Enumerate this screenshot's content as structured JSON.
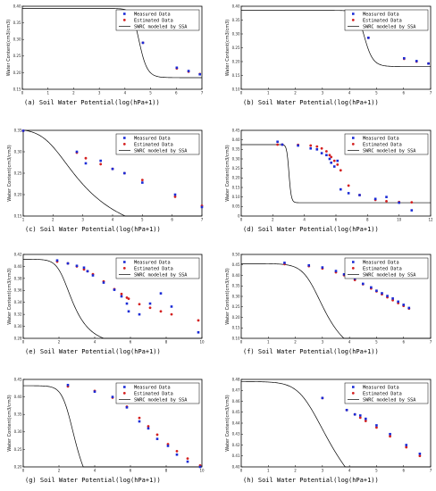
{
  "colors": {
    "measured": "#1a2bd6",
    "estimated": "#d42020",
    "curve": "#000000",
    "axis": "#000000"
  },
  "chart_data": [
    {
      "panel": "(a)",
      "type": "scatter",
      "caption": "(a)  Soil Water Potential(log(hPa+1))",
      "ylabel": "Water Content(cm3/cm3)",
      "xlim": [
        0,
        7
      ],
      "ylim": [
        0.15,
        0.4
      ],
      "xticks": [
        "0",
        "1",
        "2",
        "3",
        "4",
        "5",
        "6",
        "7"
      ],
      "yticks": [
        "0.15",
        "0.20",
        "0.25",
        "0.30",
        "0.35",
        "0.40"
      ],
      "legend": [
        "Measured Data",
        "Estimated Data",
        "SWRC modeled by SSA"
      ],
      "curve": {
        "theta_r": 0.185,
        "theta_s": 0.393,
        "alpha": 3.16e-05,
        "n": 3.3
      },
      "measured": [
        [
          4.7,
          0.29
        ],
        [
          6.02,
          0.215
        ],
        [
          6.48,
          0.205
        ],
        [
          6.92,
          0.195
        ]
      ],
      "estimated": [
        [
          4.7,
          0.29
        ],
        [
          6.02,
          0.213
        ],
        [
          6.48,
          0.203
        ],
        [
          6.92,
          0.196
        ]
      ]
    },
    {
      "panel": "(b)",
      "type": "scatter",
      "caption": "(b)  Soil Water Potential(log(hPa+1))",
      "ylabel": "Water Content(cm3/cm3)",
      "xlim": [
        0,
        7
      ],
      "ylim": [
        0.1,
        0.4
      ],
      "xticks": [
        "0",
        "1",
        "2",
        "3",
        "4",
        "5",
        "6",
        "7"
      ],
      "yticks": [
        "0.10",
        "0.15",
        "0.20",
        "0.25",
        "0.30",
        "0.35",
        "0.40"
      ],
      "legend": [
        "Measured Data",
        "Estimated Data",
        "SWRC modeled by SSA"
      ],
      "curve": {
        "theta_r": 0.182,
        "theta_s": 0.385,
        "alpha": 3.16e-05,
        "n": 3.3
      },
      "measured": [
        [
          4.7,
          0.286
        ],
        [
          6.02,
          0.212
        ],
        [
          6.48,
          0.202
        ],
        [
          6.92,
          0.193
        ]
      ],
      "estimated": [
        [
          4.7,
          0.286
        ],
        [
          6.02,
          0.21
        ],
        [
          6.48,
          0.2
        ],
        [
          6.92,
          0.193
        ]
      ]
    },
    {
      "panel": "(c)",
      "type": "scatter",
      "caption": "(c)  Soil Water Potential(log(hPa+1))",
      "ylabel": "Water Content(cm3/cm3)",
      "xlim": [
        1,
        7
      ],
      "ylim": [
        0.15,
        0.35
      ],
      "xticks": [
        "1",
        "2",
        "3",
        "4",
        "5",
        "6",
        "7"
      ],
      "yticks": [
        "0.15",
        "0.20",
        "0.25",
        "0.30",
        "0.35"
      ],
      "legend": [
        "Measured Data",
        "Estimated Data",
        "SWRC modeled by SSA"
      ],
      "curve": {
        "theta_r": 0.1,
        "theta_s": 0.354,
        "alpha": 0.0125,
        "n": 1.28
      },
      "measured": [
        [
          1.0,
          0.349
        ],
        [
          2.8,
          0.3
        ],
        [
          3.1,
          0.273
        ],
        [
          3.6,
          0.279
        ],
        [
          4.0,
          0.26
        ],
        [
          4.4,
          0.25
        ],
        [
          5.0,
          0.228
        ],
        [
          6.1,
          0.2
        ],
        [
          7.0,
          0.171
        ]
      ],
      "estimated": [
        [
          1.0,
          0.349
        ],
        [
          2.8,
          0.298
        ],
        [
          3.1,
          0.285
        ],
        [
          3.6,
          0.271
        ],
        [
          4.0,
          0.26
        ],
        [
          4.4,
          0.25
        ],
        [
          5.0,
          0.234
        ],
        [
          6.1,
          0.195
        ],
        [
          7.0,
          0.174
        ]
      ]
    },
    {
      "panel": "(d)",
      "type": "scatter",
      "caption": "(d)  Soil Water Potential(log(hPa+1))",
      "ylabel": "Water Content(cm3/cm3)",
      "xlim": [
        0,
        12
      ],
      "ylim": [
        0.0,
        0.45
      ],
      "xticks": [
        "0",
        "2",
        "4",
        "6",
        "8",
        "10",
        "12"
      ],
      "yticks": [
        "0",
        "0.05",
        "0.10",
        "0.15",
        "0.20",
        "0.25",
        "0.30",
        "0.35",
        "0.40",
        "0.45"
      ],
      "legend": [
        "Measured Data",
        "Estimated Data",
        "SWRC modeled by SSA"
      ],
      "curve": {
        "theta_r": 0.07,
        "theta_s": 0.375,
        "alpha": 0.00098,
        "n": 6.4
      },
      "measured": [
        [
          2.3,
          0.39
        ],
        [
          2.6,
          0.375
        ],
        [
          3.6,
          0.37
        ],
        [
          4.4,
          0.355
        ],
        [
          4.8,
          0.35
        ],
        [
          5.1,
          0.33
        ],
        [
          5.4,
          0.32
        ],
        [
          5.6,
          0.3
        ],
        [
          5.7,
          0.28
        ],
        [
          5.9,
          0.26
        ],
        [
          6.1,
          0.29
        ],
        [
          6.3,
          0.14
        ],
        [
          6.8,
          0.12
        ],
        [
          7.5,
          0.11
        ],
        [
          8.5,
          0.09
        ],
        [
          9.2,
          0.1
        ],
        [
          10.0,
          0.07
        ],
        [
          10.8,
          0.03
        ]
      ],
      "estimated": [
        [
          2.3,
          0.375
        ],
        [
          2.6,
          0.375
        ],
        [
          3.6,
          0.374
        ],
        [
          4.4,
          0.37
        ],
        [
          4.8,
          0.365
        ],
        [
          5.1,
          0.355
        ],
        [
          5.4,
          0.34
        ],
        [
          5.6,
          0.32
        ],
        [
          5.7,
          0.31
        ],
        [
          5.9,
          0.29
        ],
        [
          6.1,
          0.27
        ],
        [
          6.3,
          0.24
        ],
        [
          6.8,
          0.16
        ],
        [
          7.5,
          0.11
        ],
        [
          8.5,
          0.085
        ],
        [
          9.2,
          0.078
        ],
        [
          10.0,
          0.074
        ],
        [
          10.8,
          0.072
        ]
      ]
    },
    {
      "panel": "(e)",
      "type": "scatter",
      "caption": "(e)  Soil Water Potential(log(hPa+1))",
      "ylabel": "Water Content(cm3/cm3)",
      "xlim": [
        0,
        10
      ],
      "ylim": [
        0.28,
        0.42
      ],
      "xticks": [
        "0",
        "2",
        "4",
        "6",
        "8",
        "10"
      ],
      "yticks": [
        "0.28",
        "0.30",
        "0.32",
        "0.34",
        "0.36",
        "0.38",
        "0.40",
        "0.42"
      ],
      "legend": [
        "Measured Data",
        "Estimated Data",
        "SWRC modeled by SSA"
      ],
      "curve": {
        "theta_r": 0.27,
        "theta_s": 0.412,
        "alpha": 0.00631,
        "n": 1.5
      },
      "measured": [
        [
          1.9,
          0.41
        ],
        [
          2.5,
          0.405
        ],
        [
          3.0,
          0.401
        ],
        [
          3.4,
          0.398
        ],
        [
          3.6,
          0.392
        ],
        [
          3.9,
          0.385
        ],
        [
          4.5,
          0.373
        ],
        [
          5.1,
          0.361
        ],
        [
          5.5,
          0.35
        ],
        [
          5.8,
          0.338
        ],
        [
          5.9,
          0.325
        ],
        [
          6.5,
          0.32
        ],
        [
          7.1,
          0.338
        ],
        [
          7.7,
          0.355
        ],
        [
          8.3,
          0.333
        ],
        [
          9.8,
          0.29
        ]
      ],
      "estimated": [
        [
          1.9,
          0.408
        ],
        [
          2.5,
          0.405
        ],
        [
          3.0,
          0.4
        ],
        [
          3.4,
          0.395
        ],
        [
          3.6,
          0.392
        ],
        [
          3.9,
          0.387
        ],
        [
          4.5,
          0.375
        ],
        [
          5.1,
          0.362
        ],
        [
          5.5,
          0.354
        ],
        [
          5.8,
          0.348
        ],
        [
          5.9,
          0.346
        ],
        [
          6.5,
          0.337
        ],
        [
          7.1,
          0.331
        ],
        [
          7.7,
          0.325
        ],
        [
          8.3,
          0.32
        ],
        [
          9.8,
          0.31
        ]
      ]
    },
    {
      "panel": "(f)",
      "type": "scatter",
      "caption": "(f)  Soil Water Potential(log(hPa+1))",
      "ylabel": "Water Content(cm3/cm3)",
      "xlim": [
        0,
        7
      ],
      "ylim": [
        0.1,
        0.5
      ],
      "xticks": [
        "0",
        "1",
        "2",
        "3",
        "4",
        "5",
        "6",
        "7"
      ],
      "yticks": [
        "0.10",
        "0.15",
        "0.20",
        "0.25",
        "0.30",
        "0.35",
        "0.40",
        "0.45",
        "0.50"
      ],
      "legend": [
        "Measured Data",
        "Estimated Data",
        "SWRC modeled by SSA"
      ],
      "curve": {
        "theta_r": 0.0,
        "theta_s": 0.456,
        "alpha": 0.00251,
        "n": 1.55
      },
      "measured": [
        [
          1.6,
          0.46
        ],
        [
          2.5,
          0.448
        ],
        [
          3.0,
          0.438
        ],
        [
          3.5,
          0.421
        ],
        [
          3.8,
          0.405
        ],
        [
          4.2,
          0.385
        ],
        [
          4.5,
          0.36
        ],
        [
          4.8,
          0.343
        ],
        [
          5.0,
          0.327
        ],
        [
          5.2,
          0.315
        ],
        [
          5.4,
          0.302
        ],
        [
          5.6,
          0.29
        ],
        [
          5.8,
          0.275
        ],
        [
          6.0,
          0.26
        ],
        [
          6.2,
          0.245
        ]
      ],
      "estimated": [
        [
          1.6,
          0.454
        ],
        [
          2.5,
          0.444
        ],
        [
          3.0,
          0.433
        ],
        [
          3.5,
          0.415
        ],
        [
          3.8,
          0.401
        ],
        [
          4.2,
          0.378
        ],
        [
          4.5,
          0.358
        ],
        [
          4.8,
          0.338
        ],
        [
          5.0,
          0.324
        ],
        [
          5.2,
          0.31
        ],
        [
          5.4,
          0.296
        ],
        [
          5.6,
          0.282
        ],
        [
          5.8,
          0.268
        ],
        [
          6.0,
          0.255
        ],
        [
          6.2,
          0.242
        ]
      ]
    },
    {
      "panel": "(g)",
      "type": "scatter",
      "caption": "(g)  Soil Water Potential(log(hPa+1))",
      "ylabel": "Water Content(cm3/cm3)",
      "xlim": [
        0,
        10
      ],
      "ylim": [
        0.2,
        0.45
      ],
      "xticks": [
        "0",
        "2",
        "4",
        "6",
        "8",
        "10"
      ],
      "yticks": [
        "0.20",
        "0.25",
        "0.30",
        "0.35",
        "0.40",
        "0.45"
      ],
      "legend": [
        "Measured Data",
        "Estimated Data",
        "SWRC modeled by SSA"
      ],
      "curve": {
        "theta_r": 0.1,
        "theta_s": 0.432,
        "alpha": 0.00316,
        "n": 1.6
      },
      "measured": [
        [
          2.5,
          0.434
        ],
        [
          4.0,
          0.415
        ],
        [
          5.0,
          0.4
        ],
        [
          5.8,
          0.37
        ],
        [
          6.5,
          0.33
        ],
        [
          7.0,
          0.31
        ],
        [
          7.5,
          0.28
        ],
        [
          8.1,
          0.26
        ],
        [
          8.6,
          0.235
        ],
        [
          9.2,
          0.215
        ],
        [
          9.9,
          0.2
        ]
      ],
      "estimated": [
        [
          2.5,
          0.43
        ],
        [
          4.0,
          0.417
        ],
        [
          5.0,
          0.398
        ],
        [
          5.8,
          0.372
        ],
        [
          6.5,
          0.34
        ],
        [
          7.0,
          0.316
        ],
        [
          7.5,
          0.292
        ],
        [
          8.1,
          0.265
        ],
        [
          8.6,
          0.245
        ],
        [
          9.2,
          0.224
        ],
        [
          9.9,
          0.204
        ]
      ]
    },
    {
      "panel": "(h)",
      "type": "scatter",
      "caption": "(h)  Soil Water Potential(log(hPa+1))",
      "ylabel": "Water Content(cm3/cm3)",
      "xlim": [
        0,
        7
      ],
      "ylim": [
        0.4,
        0.48
      ],
      "xticks": [
        "0",
        "1",
        "2",
        "3",
        "4",
        "5",
        "6",
        "7"
      ],
      "yticks": [
        "0.40",
        "0.41",
        "0.42",
        "0.43",
        "0.44",
        "0.45",
        "0.46",
        "0.47",
        "0.48"
      ],
      "legend": [
        "Measured Data",
        "Estimated Data",
        "SWRC modeled by SSA"
      ],
      "curve": {
        "theta_r": 0.34,
        "theta_s": 0.478,
        "alpha": 0.00398,
        "n": 1.25
      },
      "measured": [
        [
          3.0,
          0.463
        ],
        [
          3.9,
          0.452
        ],
        [
          4.2,
          0.448
        ],
        [
          4.4,
          0.447
        ],
        [
          4.6,
          0.444
        ],
        [
          5.0,
          0.438
        ],
        [
          5.5,
          0.43
        ],
        [
          6.1,
          0.42
        ],
        [
          6.6,
          0.412
        ]
      ],
      "estimated": [
        [
          3.0,
          0.463
        ],
        [
          3.9,
          0.452
        ],
        [
          4.2,
          0.448
        ],
        [
          4.4,
          0.445
        ],
        [
          4.6,
          0.442
        ],
        [
          5.0,
          0.436
        ],
        [
          5.5,
          0.428
        ],
        [
          6.1,
          0.418
        ],
        [
          6.6,
          0.41
        ]
      ]
    }
  ]
}
